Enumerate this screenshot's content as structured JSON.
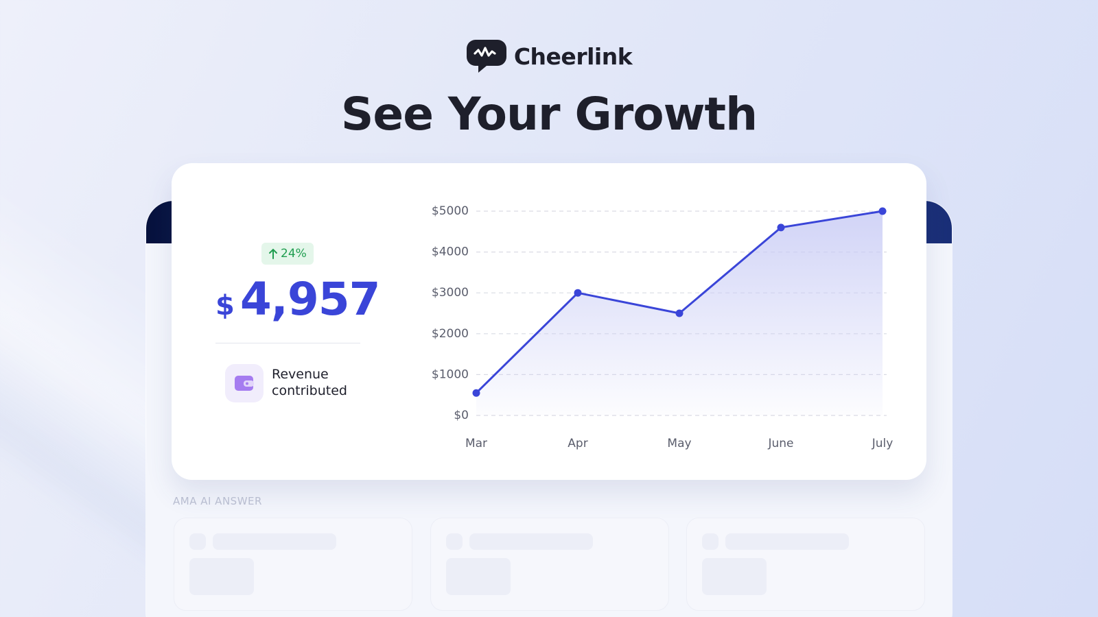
{
  "brand": "Cheerlink",
  "headline": "See Your Growth",
  "metric": {
    "change": "24%",
    "currency": "$",
    "amount": "4,957",
    "label": "Revenue contributed"
  },
  "section_label": "AMA AI ANSWER",
  "chart_data": {
    "type": "line",
    "categories": [
      "Mar",
      "Apr",
      "May",
      "June",
      "July"
    ],
    "values": [
      550,
      3000,
      2500,
      4600,
      5000
    ],
    "color": "#3a45d8",
    "ylim": [
      0,
      5000
    ],
    "yticks": [
      {
        "value": 0,
        "label": "$0"
      },
      {
        "value": 1000,
        "label": "$1000"
      },
      {
        "value": 2000,
        "label": "$2000"
      },
      {
        "value": 3000,
        "label": "$3000"
      },
      {
        "value": 4000,
        "label": "$4000"
      },
      {
        "value": 5000,
        "label": "$5000"
      }
    ],
    "grid": true
  }
}
